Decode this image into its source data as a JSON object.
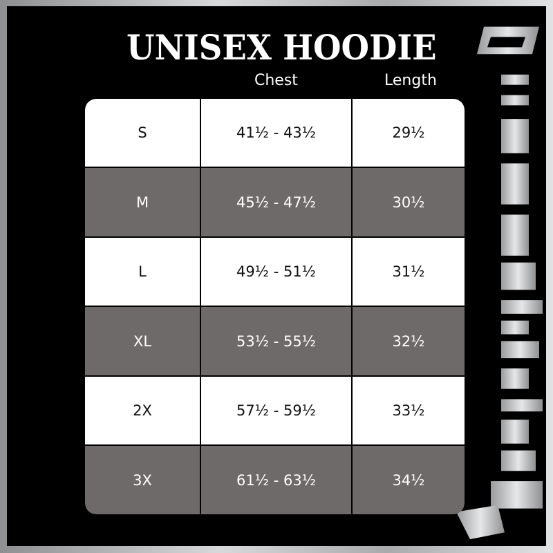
{
  "title": "UNISEX HOODIE",
  "headers": {
    "chest": "Chest",
    "length": "Length"
  },
  "rows": [
    {
      "size": "S",
      "chest": "41½ - 43½",
      "length": "29½"
    },
    {
      "size": "M",
      "chest": "45½ - 47½",
      "length": "30½"
    },
    {
      "size": "L",
      "chest": "49½ - 51½",
      "length": "31½"
    },
    {
      "size": "XL",
      "chest": "53½ - 55½",
      "length": "32½"
    },
    {
      "size": "2X",
      "chest": "57½ - 59½",
      "length": "33½"
    },
    {
      "size": "3X",
      "chest": "61½ - 63½",
      "length": "34½"
    }
  ],
  "colors": {
    "background": "#000000",
    "row_light": "#ffffff",
    "row_dark": "#6e6a6a",
    "frame": "silver"
  }
}
